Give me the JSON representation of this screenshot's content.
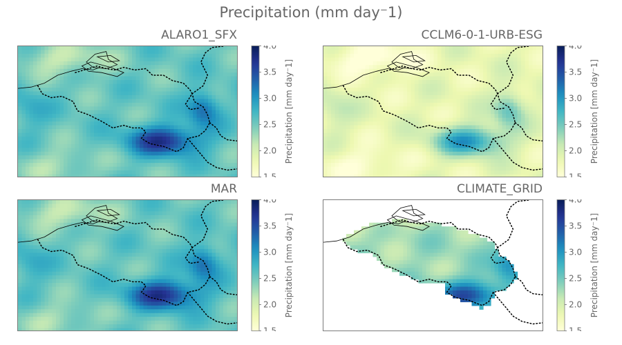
{
  "title": "Precipitation (mm day⁻1)",
  "chart_data": {
    "type": "heatmap",
    "colormap": "YlGnBu",
    "clim": [
      1.5,
      4.0
    ],
    "colorbar_ticks": [
      1.5,
      2.0,
      2.5,
      3.0,
      3.5,
      4.0
    ],
    "colorbar_tick_labels": [
      "1.5",
      "2.0",
      "2.5",
      "3.0",
      "3.5",
      "4.0"
    ],
    "colorbar_label": "Precipitation [mm day⁻1]",
    "panels": [
      {
        "name": "ALARO1_SFX",
        "base": 2.55,
        "core": 3.9,
        "masked": false
      },
      {
        "name": "CCLM6-0-1-URB-ESG",
        "base": 1.85,
        "core": 3.55,
        "masked": false
      },
      {
        "name": "MAR",
        "base": 2.55,
        "core": 3.9,
        "masked": false
      },
      {
        "name": "CLIMATE_GRID",
        "base": 2.3,
        "core": 4.0,
        "masked": true
      }
    ]
  }
}
